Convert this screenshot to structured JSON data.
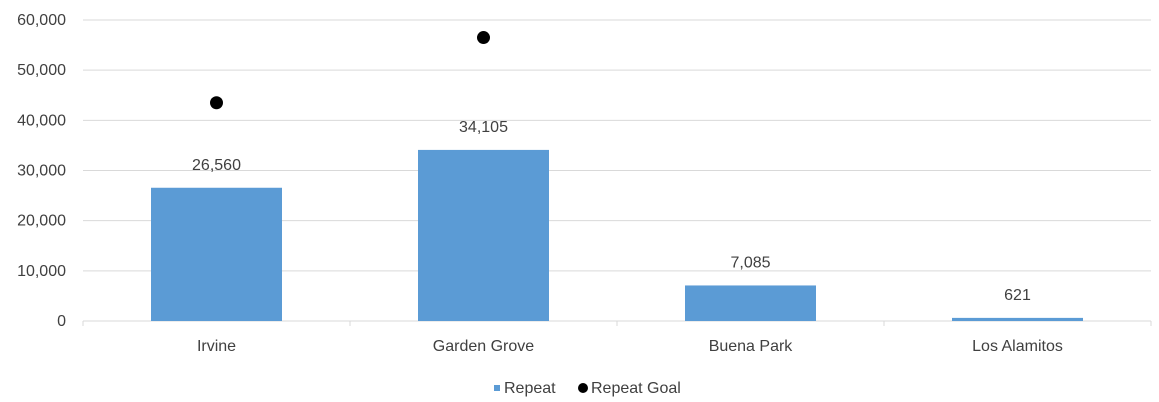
{
  "chart_data": {
    "type": "bar",
    "categories": [
      "Irvine",
      "Garden Grove",
      "Buena Park",
      "Los Alamitos"
    ],
    "series": [
      {
        "name": "Repeat",
        "kind": "bar",
        "color": "#5B9BD5",
        "values": [
          26560,
          34105,
          7085,
          621
        ],
        "labels": [
          "26,560",
          "34,105",
          "7,085",
          "621"
        ]
      },
      {
        "name": "Repeat Goal",
        "kind": "marker",
        "color": "#000000",
        "values": [
          43500,
          56500,
          null,
          null
        ]
      }
    ],
    "ylim": [
      0,
      60000
    ],
    "yticks": [
      0,
      10000,
      20000,
      30000,
      40000,
      50000,
      60000
    ],
    "ytick_labels": [
      "0",
      "10,000",
      "20,000",
      "30,000",
      "40,000",
      "50,000",
      "60,000"
    ],
    "grid": true,
    "legend_position": "bottom",
    "title": "",
    "xlabel": "",
    "ylabel": ""
  }
}
